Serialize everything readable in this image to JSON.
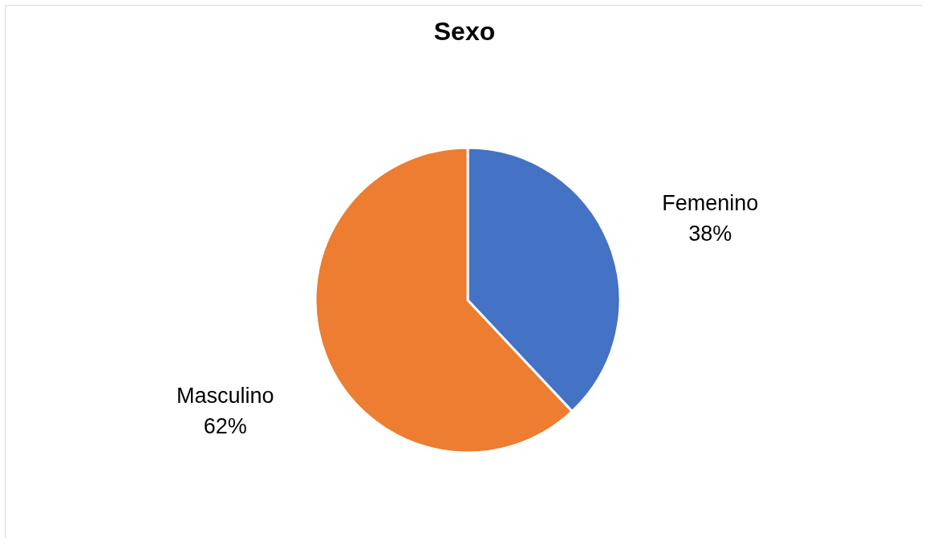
{
  "chart_data": {
    "type": "pie",
    "title": "Sexo",
    "categories": [
      "Femenino",
      "Masculino"
    ],
    "values": [
      38,
      62
    ],
    "colors": [
      "#4472c4",
      "#ed7d31"
    ],
    "value_labels": [
      "38%",
      "62%"
    ]
  }
}
